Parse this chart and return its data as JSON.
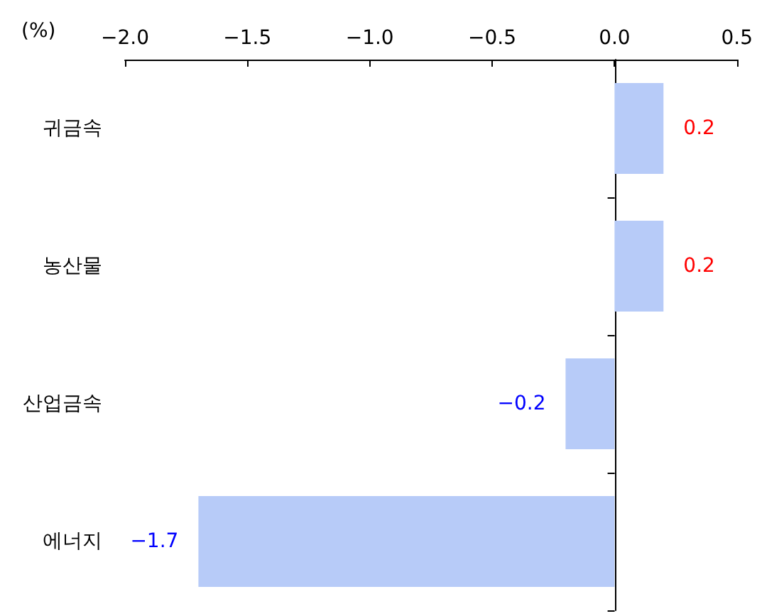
{
  "chart_data": {
    "type": "bar",
    "orientation": "horizontal",
    "xlabel": "(%)",
    "categories": [
      "귀금속",
      "농산물",
      "산업금속",
      "에너지"
    ],
    "values": [
      0.2,
      0.2,
      -0.2,
      -1.7
    ],
    "color": "#b7cbf8",
    "xlim": [
      -2.0,
      0.5
    ],
    "xticks": [
      {
        "value": -2.0,
        "label": "−2.0"
      },
      {
        "value": -1.5,
        "label": "−1.5"
      },
      {
        "value": -1.0,
        "label": "−1.0"
      },
      {
        "value": -0.5,
        "label": "−0.5"
      },
      {
        "value": 0.0,
        "label": "0.0"
      },
      {
        "value": 0.5,
        "label": "0.5"
      }
    ],
    "data_labels": true
  }
}
